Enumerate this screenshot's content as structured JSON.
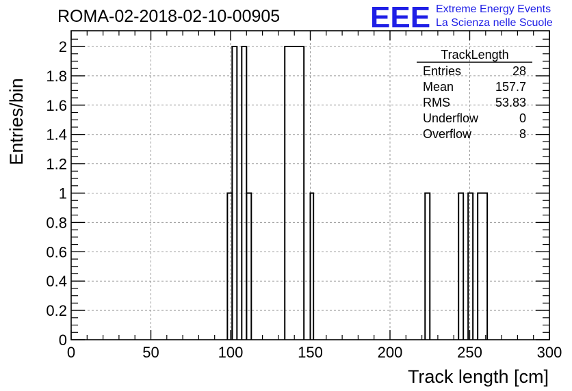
{
  "header": {
    "run_title": "ROMA-02-2018-02-10-00905",
    "logo_text": "EEE",
    "org_line1": "Extreme Energy Events",
    "org_line2": "La Scienza nelle Scuole"
  },
  "stats_box": {
    "title": "TrackLength",
    "rows": [
      {
        "label": "Entries",
        "value": "28"
      },
      {
        "label": "Mean",
        "value": "157.7"
      },
      {
        "label": "RMS",
        "value": "53.83"
      },
      {
        "label": "Underflow",
        "value": "0"
      },
      {
        "label": "Overflow",
        "value": "8"
      }
    ]
  },
  "colors": {
    "logo": "#1f1fe6",
    "line": "#000000",
    "grid": "#9a9a9a"
  },
  "chart_data": {
    "type": "bar",
    "style": "step-histogram",
    "xlabel": "Track length [cm]",
    "ylabel": "Entries/bin",
    "xlim": [
      0,
      300
    ],
    "ylim": [
      0,
      2.1
    ],
    "grid": true,
    "x_ticks": [
      0,
      50,
      100,
      150,
      200,
      250,
      300
    ],
    "y_ticks": [
      0,
      0.2,
      0.4,
      0.6,
      0.8,
      1,
      1.2,
      1.4,
      1.6,
      1.8,
      2
    ],
    "bins": [
      {
        "x0": 98,
        "x1": 101,
        "value": 1
      },
      {
        "x0": 101,
        "x1": 104,
        "value": 2
      },
      {
        "x0": 107,
        "x1": 110,
        "value": 2
      },
      {
        "x0": 110,
        "x1": 113,
        "value": 1
      },
      {
        "x0": 134,
        "x1": 146,
        "value": 2
      },
      {
        "x0": 150,
        "x1": 152,
        "value": 1
      },
      {
        "x0": 222,
        "x1": 225,
        "value": 1
      },
      {
        "x0": 243,
        "x1": 246,
        "value": 1
      },
      {
        "x0": 249,
        "x1": 252,
        "value": 1
      },
      {
        "x0": 255,
        "x1": 261,
        "value": 1
      }
    ]
  }
}
